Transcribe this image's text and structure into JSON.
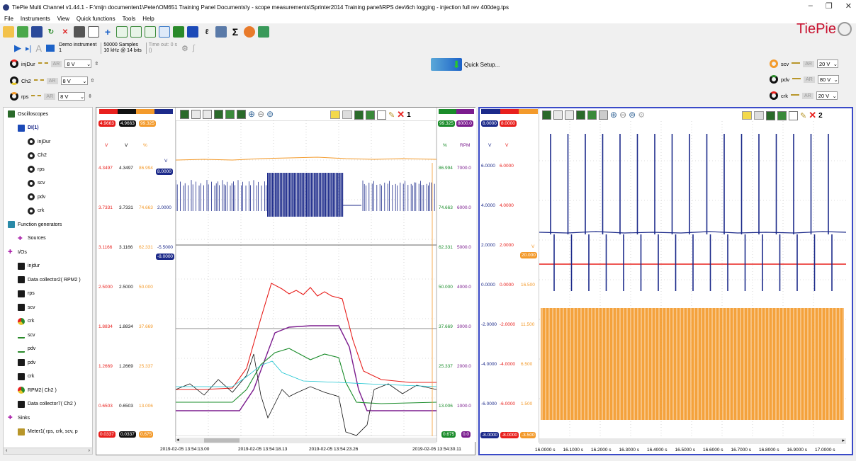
{
  "title": "TiePie Multi Channel v1.44.1 - F:\\mijn documenten1\\Peter\\OM651 Training Panel Documents\\y - scope measurements\\Sprinter2014 Training panel\\RPS dev\\6ch logging - injection full rev 400deg.tps",
  "menu": [
    "File",
    "Instruments",
    "View",
    "Quick functions",
    "Tools",
    "Help"
  ],
  "brand": "TiePie",
  "instrument": {
    "name": "Demo instrument",
    "index": "1",
    "samples": "50000 Samples",
    "rate": "10 kHz @ 14 bits",
    "timeout_label": "Time out: 0 s",
    "timeout_sub": "()"
  },
  "quick_setup": "Quick Setup...",
  "channels_left": [
    {
      "name": "injDur",
      "ar": "AR",
      "range": "8 V"
    },
    {
      "name": "Ch2",
      "ar": "AR",
      "range": "8 V"
    },
    {
      "name": "rps",
      "ar": "AR",
      "range": "8 V"
    }
  ],
  "channels_right": [
    {
      "name": "scv",
      "ar": "AR",
      "range": "20 V"
    },
    {
      "name": "pdv",
      "ar": "AR",
      "range": "80 V"
    },
    {
      "name": "crk",
      "ar": "AR",
      "range": "20 V"
    }
  ],
  "tree": [
    {
      "label": "Oscilloscopes",
      "level": 0,
      "icon": "scope"
    },
    {
      "label": "DI(1)",
      "level": 1,
      "icon": "device"
    },
    {
      "label": "injDur",
      "level": 2,
      "icon": "knob"
    },
    {
      "label": "Ch2",
      "level": 2,
      "icon": "knob"
    },
    {
      "label": "rps",
      "level": 2,
      "icon": "knob"
    },
    {
      "label": "scv",
      "level": 2,
      "icon": "knob"
    },
    {
      "label": "pdv",
      "level": 2,
      "icon": "knob"
    },
    {
      "label": "crk",
      "level": 2,
      "icon": "knob"
    },
    {
      "label": "Function generators",
      "level": 0,
      "icon": "gen"
    },
    {
      "label": "Sources",
      "level": 1,
      "icon": "plus"
    },
    {
      "label": "I/Os",
      "level": 0,
      "icon": "plus"
    },
    {
      "label": "injdur",
      "level": 1,
      "icon": "io"
    },
    {
      "label": "Data collector2( RPM2 )",
      "level": 1,
      "icon": "io"
    },
    {
      "label": "rps",
      "level": 1,
      "icon": "io"
    },
    {
      "label": "scv",
      "level": 1,
      "icon": "io"
    },
    {
      "label": "crk",
      "level": 1,
      "icon": "pie"
    },
    {
      "label": "scv",
      "level": 1,
      "icon": "pct"
    },
    {
      "label": "pdv",
      "level": 1,
      "icon": "pct"
    },
    {
      "label": "pdv",
      "level": 1,
      "icon": "io"
    },
    {
      "label": "crk",
      "level": 1,
      "icon": "io"
    },
    {
      "label": "RPM2( Ch2 )",
      "level": 1,
      "icon": "pie"
    },
    {
      "label": "Data collector7( Ch2 )",
      "level": 1,
      "icon": "io"
    },
    {
      "label": "Sinks",
      "level": 0,
      "icon": "plus"
    },
    {
      "label": "Meter1( rps, crk, scv, p",
      "level": 1,
      "icon": "meter"
    }
  ],
  "scope1": {
    "number": "1",
    "top_chips": [
      "4.9663",
      "4.9663",
      "99.325"
    ],
    "units": [
      "V",
      "V",
      "%"
    ],
    "ticks_a": [
      "4.3497",
      "3.7331",
      "3.1166",
      "2.5000",
      "1.8834",
      "1.2669",
      "0.6503"
    ],
    "ticks_c": [
      "86.994",
      "74.663",
      "62.331",
      "50.000",
      "37.669",
      "25.337",
      "13.006"
    ],
    "ticks_d": [
      "",
      "2.0000",
      "-5.5000",
      "",
      "",
      "",
      ""
    ],
    "bottom_chips": [
      "0.0337",
      "0.0337",
      "0.675"
    ],
    "offset_chip_1": "8.0000",
    "offset_chip_2": "-8.0000",
    "offset_unit": "V",
    "right_top_chips": [
      "99.325",
      "8000.0"
    ],
    "right_units": [
      "%",
      "RPM"
    ],
    "right_ticks_pct": [
      "86.994",
      "74.663",
      "62.331",
      "50.000",
      "37.669",
      "25.337",
      "13.006"
    ],
    "right_ticks_rpm": [
      "7000.0",
      "6000.0",
      "5000.0",
      "4000.0",
      "3000.0",
      "2000.0",
      "1000.0"
    ],
    "right_bottom_chips": [
      "0.675",
      "0.0"
    ],
    "time_labels": [
      "2019-02-05 13:54:13.00",
      "2019-02-05 13:54:18.13",
      "2019-02-05 13:54:23.26",
      "2019-02-05 13:54:30.11"
    ]
  },
  "scope2": {
    "number": "2",
    "top_chips": [
      "8.0000",
      "8.0000"
    ],
    "units": [
      "V",
      "V"
    ],
    "ticks_a": [
      "6.0000",
      "4.0000",
      "2.0000",
      "0.0000",
      "-2.0000",
      "-4.0000",
      "-6.0000"
    ],
    "ticks_c": [
      "",
      "",
      "",
      "16.500",
      "11.500",
      "6.500",
      "1.500"
    ],
    "bottom_chips": [
      "-8.0000",
      "-8.0000",
      "-3.500"
    ],
    "offset_chip": "20.000",
    "offset_unit": "V",
    "time_labels": [
      "16.0000 s",
      "16.1000 s",
      "16.2000 s",
      "16.3000 s",
      "16.4000 s",
      "16.5000 s",
      "16.6000 s",
      "16.7000 s",
      "16.8000 s",
      "16.9000 s",
      "17.0000 s"
    ]
  },
  "colors": {
    "red": "#e8201d",
    "black": "#111111",
    "orange": "#f39a2b",
    "navy": "#1c2a8a",
    "green": "#1a8c2a",
    "purple": "#7b1c8e",
    "cyan": "#19c4d0"
  }
}
